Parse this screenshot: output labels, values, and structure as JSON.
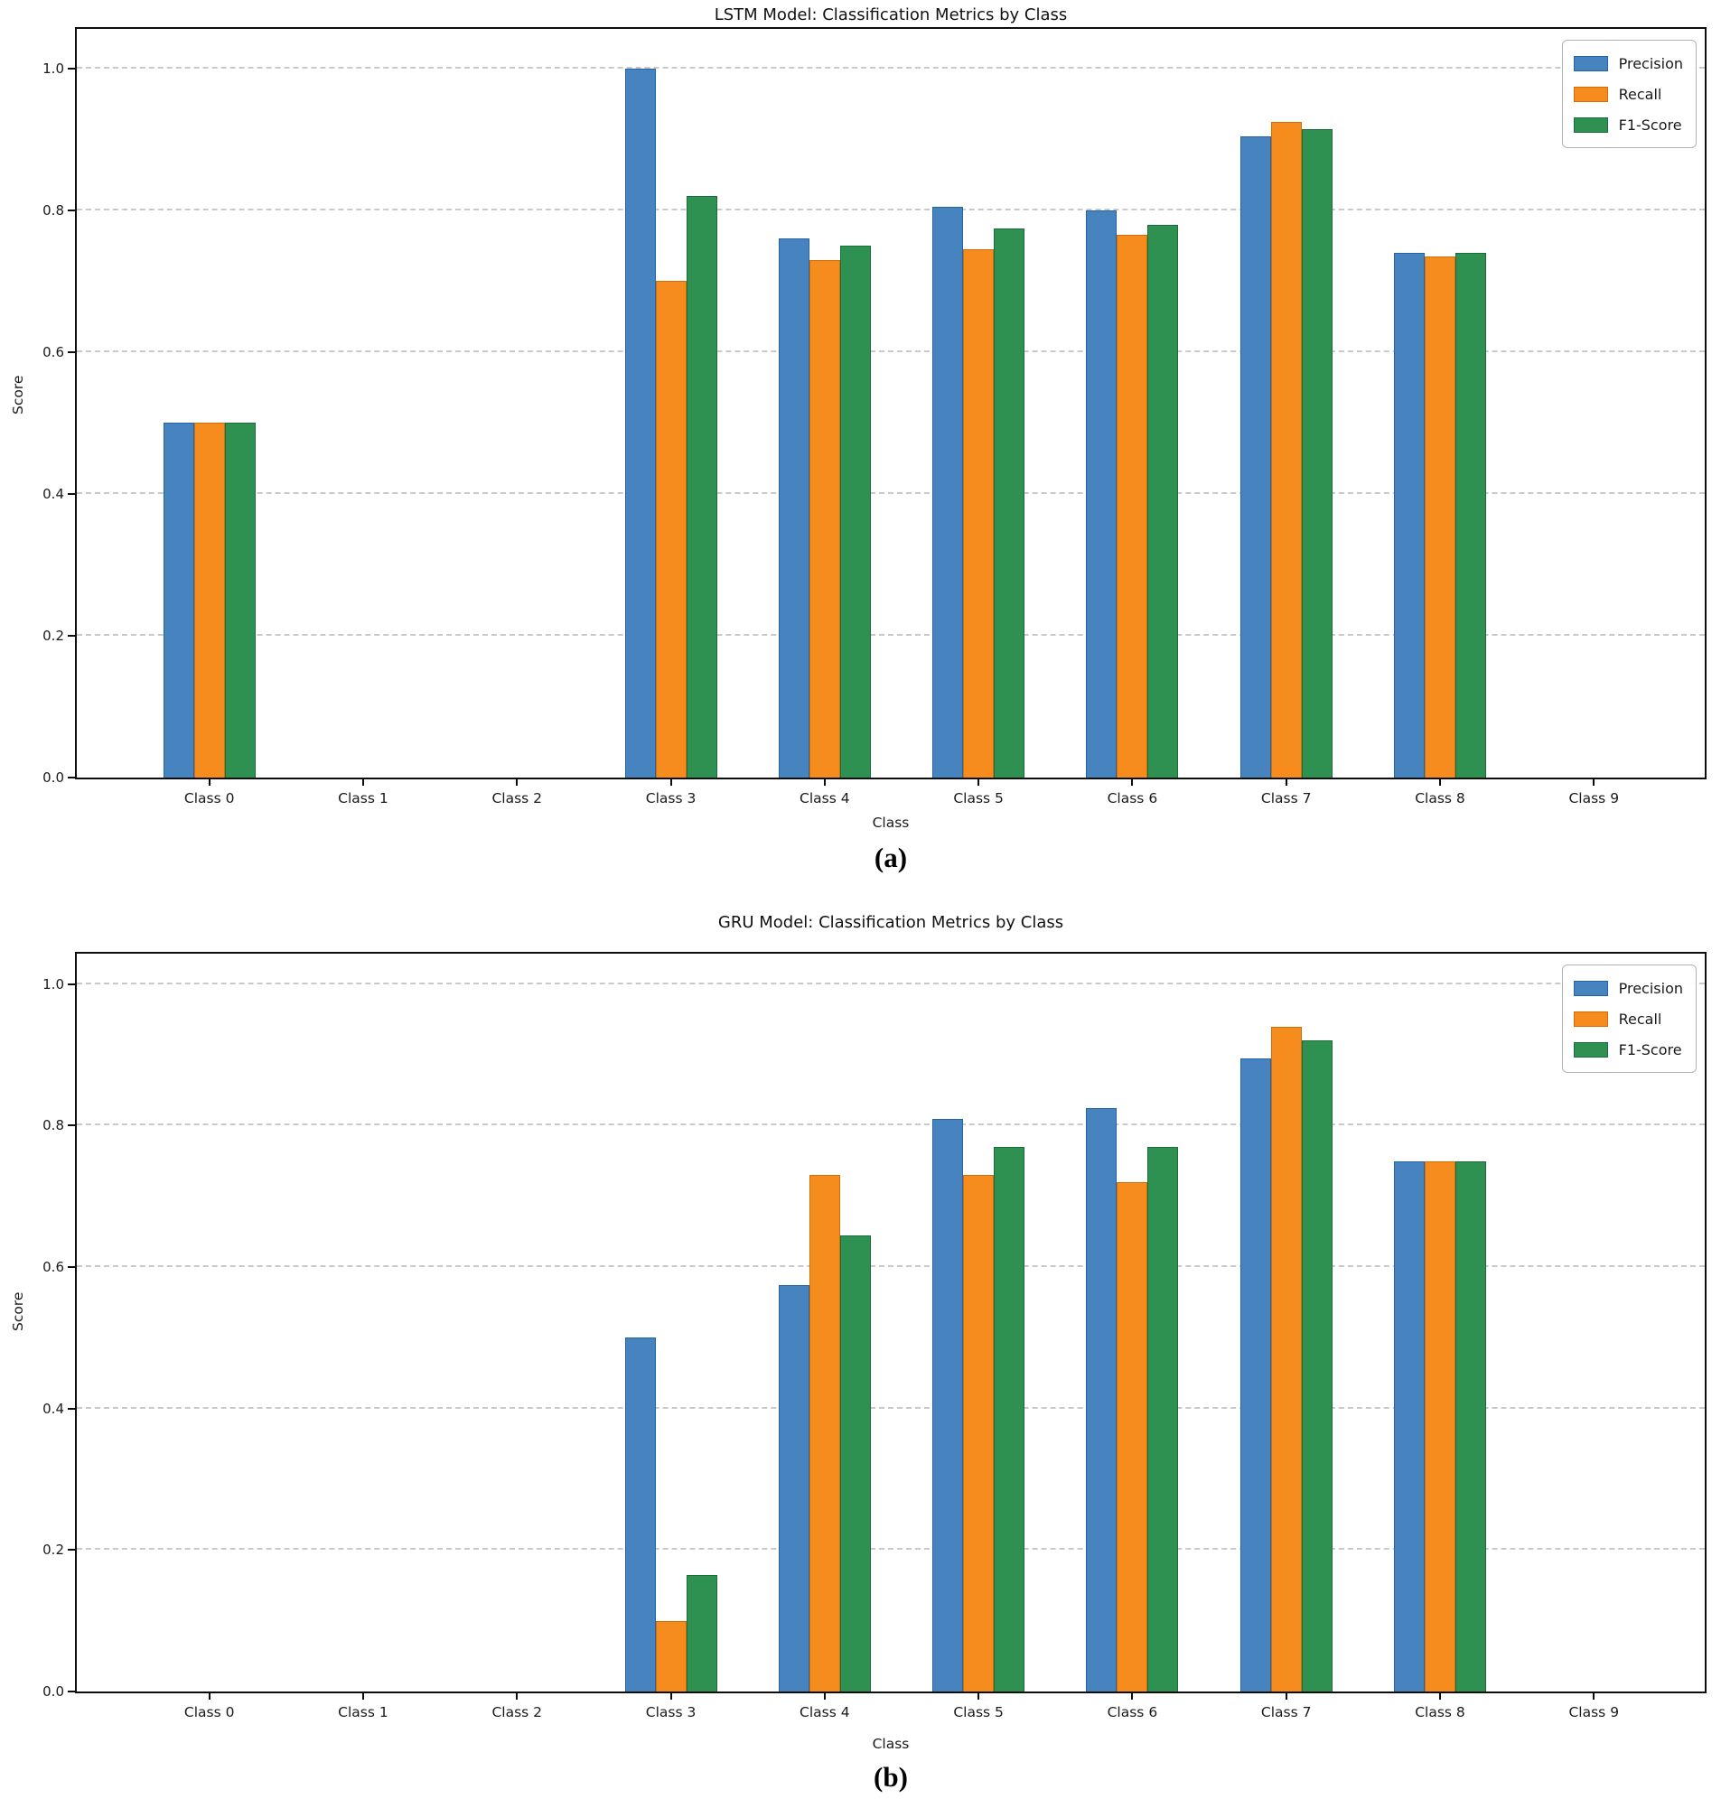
{
  "figure": {
    "caption_a": "(a)",
    "caption_b": "(b)"
  },
  "chart_data": [
    {
      "type": "bar",
      "title": "LSTM Model: Classification Metrics by Class",
      "xlabel": "Class",
      "ylabel": "Score",
      "caption": "(a)",
      "categories": [
        "Class 0",
        "Class 1",
        "Class 2",
        "Class 3",
        "Class 4",
        "Class 5",
        "Class 6",
        "Class 7",
        "Class 8",
        "Class 9"
      ],
      "yticks": [
        0.0,
        0.2,
        0.4,
        0.6,
        0.8,
        1.0
      ],
      "ylim": [
        0,
        1.056
      ],
      "grid": "horizontal-dashed",
      "legend_position": "upper-right",
      "series": [
        {
          "name": "Precision",
          "color": "#4783BE",
          "edge": "#2264A5",
          "values": [
            0.5,
            0,
            0,
            1.0,
            0.76,
            0.805,
            0.8,
            0.905,
            0.74,
            0
          ]
        },
        {
          "name": "Recall",
          "color": "#F68B1E",
          "edge": "#D06E07",
          "values": [
            0.5,
            0,
            0,
            0.7,
            0.73,
            0.745,
            0.765,
            0.925,
            0.735,
            0
          ]
        },
        {
          "name": "F1-Score",
          "color": "#2E9152",
          "edge": "#1C6B3A",
          "values": [
            0.5,
            0,
            0,
            0.82,
            0.75,
            0.775,
            0.78,
            0.915,
            0.74,
            0
          ]
        }
      ]
    },
    {
      "type": "bar",
      "title": "GRU Model: Classification Metrics by Class",
      "xlabel": "Class",
      "ylabel": "Score",
      "caption": "(b)",
      "categories": [
        "Class 0",
        "Class 1",
        "Class 2",
        "Class 3",
        "Class 4",
        "Class 5",
        "Class 6",
        "Class 7",
        "Class 8",
        "Class 9"
      ],
      "yticks": [
        0.0,
        0.2,
        0.4,
        0.6,
        0.8,
        1.0
      ],
      "ylim": [
        0,
        1.043
      ],
      "grid": "horizontal-dashed",
      "legend_position": "upper-right",
      "series": [
        {
          "name": "Precision",
          "color": "#4783BE",
          "edge": "#2264A5",
          "values": [
            0,
            0,
            0,
            0.5,
            0.575,
            0.81,
            0.825,
            0.895,
            0.75,
            0
          ]
        },
        {
          "name": "Recall",
          "color": "#F68B1E",
          "edge": "#D06E07",
          "values": [
            0,
            0,
            0,
            0.1,
            0.73,
            0.73,
            0.72,
            0.94,
            0.75,
            0
          ]
        },
        {
          "name": "F1-Score",
          "color": "#2E9152",
          "edge": "#1C6B3A",
          "values": [
            0,
            0,
            0,
            0.165,
            0.645,
            0.77,
            0.77,
            0.92,
            0.75,
            0
          ]
        }
      ]
    }
  ]
}
